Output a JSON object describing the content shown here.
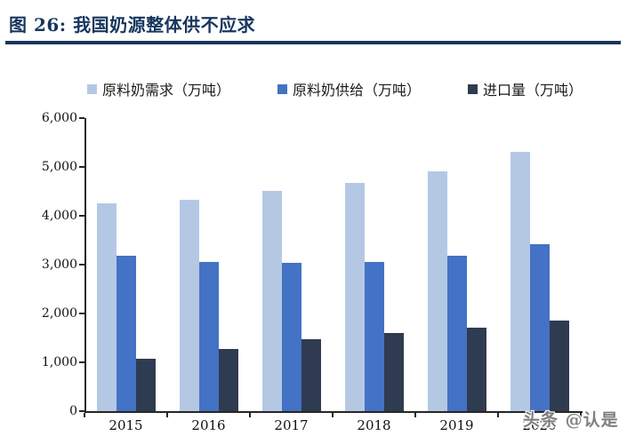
{
  "header": {
    "title": "图 26: 我国奶源整体供不应求"
  },
  "watermark": "头条 @认是",
  "chart_data": {
    "type": "bar",
    "title": "图 26: 我国奶源整体供不应求",
    "categories": [
      "2015",
      "2016",
      "2017",
      "2018",
      "2019",
      "2020"
    ],
    "series": [
      {
        "name": "原料奶需求（万吨）",
        "color": "#b4c8e4",
        "values": [
          4260,
          4330,
          4500,
          4680,
          4900,
          5300
        ]
      },
      {
        "name": "原料奶供给（万吨）",
        "color": "#4472c4",
        "values": [
          3180,
          3050,
          3030,
          3060,
          3190,
          3420
        ]
      },
      {
        "name": "进口量（万吨）",
        "color": "#2f3b50",
        "values": [
          1080,
          1270,
          1470,
          1600,
          1710,
          1860
        ]
      }
    ],
    "xlabel": "",
    "ylabel": "",
    "ylim": [
      0,
      6000
    ],
    "ytick_values": [
      6000,
      5000,
      4000,
      3000,
      2000,
      1000,
      0
    ],
    "ytick_labels": [
      "6,000",
      "5,000",
      "4,000",
      "3,000",
      "2,000",
      "1,000",
      "0"
    ],
    "legend_position": "top",
    "grid": false,
    "axis_color": "#262626"
  }
}
